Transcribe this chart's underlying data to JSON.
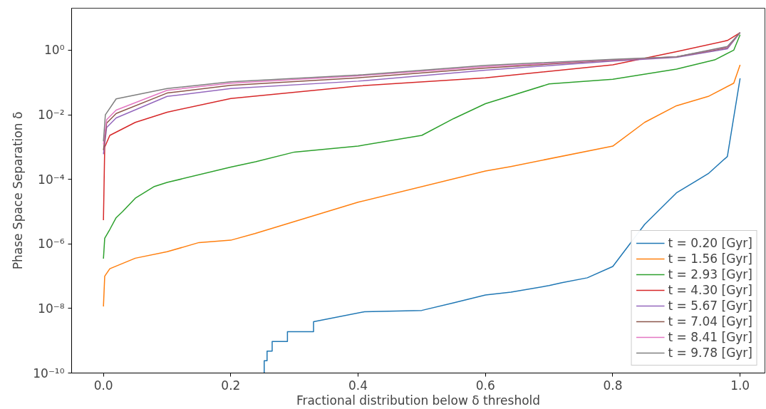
{
  "chart_data": {
    "type": "line",
    "xlabel": "Fractional distribution below δ threshold",
    "ylabel": "Phase Space Separation δ",
    "log": "y",
    "xlim": [
      -0.05,
      1.039
    ],
    "ylim": [
      1e-10,
      20
    ],
    "xticks": [
      {
        "value": 0,
        "label": "0.0"
      },
      {
        "value": 0.2,
        "label": "0.2"
      },
      {
        "value": 0.4,
        "label": "0.4"
      },
      {
        "value": 0.6,
        "label": "0.6"
      },
      {
        "value": 0.8,
        "label": "0.8"
      },
      {
        "value": 1,
        "label": "1.0"
      }
    ],
    "yticks": [
      {
        "value": 1e-10,
        "label": "10⁻¹⁰"
      },
      {
        "value": 1e-08,
        "label": "10⁻⁸"
      },
      {
        "value": 1e-06,
        "label": "10⁻⁶"
      },
      {
        "value": 0.0001,
        "label": "10⁻⁴"
      },
      {
        "value": 0.01,
        "label": "10⁻²"
      },
      {
        "value": 1,
        "label": "10⁰"
      }
    ],
    "grid": false,
    "legend": "bottom right",
    "line_style": "solid",
    "marker": "none",
    "series": [
      {
        "name": "t = 0.20 [Gyr]",
        "color": "#1f77b4",
        "x": [
          0.2525,
          0.2525,
          0.257,
          0.257,
          0.265,
          0.265,
          0.289,
          0.289,
          0.33,
          0.33,
          0.41,
          0.5,
          0.55,
          0.6,
          0.64,
          0.7,
          0.72,
          0.76,
          0.8,
          0.85,
          0.9,
          0.95,
          0.98,
          0.99,
          1.0
        ],
        "values": [
          1e-10,
          2.4e-10,
          2.4e-10,
          4.8e-10,
          4.8e-10,
          9.5e-10,
          9.5e-10,
          1.9e-09,
          1.9e-09,
          3.9e-09,
          7.9e-09,
          8.7e-09,
          1.5e-08,
          2.6e-08,
          3.2e-08,
          5.1e-08,
          6.3e-08,
          8.9e-08,
          2e-07,
          4e-06,
          3.8e-05,
          0.00015,
          0.00051,
          0.0083,
          0.135
        ]
      },
      {
        "name": "t = 1.56 [Gyr]",
        "color": "#ff7f0e",
        "x": [
          0,
          0.002,
          0.01,
          0.05,
          0.1,
          0.15,
          0.2,
          0.238,
          0.4,
          0.6,
          0.64,
          0.8,
          0.85,
          0.9,
          0.95,
          0.99,
          1.0
        ],
        "values": [
          1.15e-08,
          1e-07,
          1.7e-07,
          3.6e-07,
          5.7e-07,
          1.1e-06,
          1.3e-06,
          2.1e-06,
          1.96e-05,
          0.00018,
          0.00025,
          0.00107,
          0.0058,
          0.019,
          0.037,
          0.095,
          0.35
        ]
      },
      {
        "name": "t = 2.93 [Gyr]",
        "color": "#2ca02c",
        "x": [
          0,
          0.002,
          0.01,
          0.02,
          0.03,
          0.05,
          0.08,
          0.1,
          0.2,
          0.239,
          0.3,
          0.4,
          0.5,
          0.55,
          0.6,
          0.7,
          0.8,
          0.9,
          0.96,
          0.99,
          1.0
        ],
        "values": [
          3.5e-07,
          1.5e-06,
          2.8e-06,
          6.5e-06,
          1e-05,
          2.6e-05,
          6e-05,
          8e-05,
          0.00024,
          0.00035,
          0.0007,
          0.00107,
          0.0023,
          0.0076,
          0.022,
          0.09,
          0.125,
          0.26,
          0.5,
          1.0,
          3.0
        ]
      },
      {
        "name": "t = 4.30 [Gyr]",
        "color": "#d62728",
        "x": [
          0,
          0.002,
          0.01,
          0.05,
          0.1,
          0.2,
          0.4,
          0.6,
          0.8,
          0.9,
          0.98,
          1.0
        ],
        "values": [
          5.4e-06,
          0.001,
          0.0023,
          0.0058,
          0.012,
          0.032,
          0.078,
          0.14,
          0.35,
          0.9,
          2.0,
          3.5
        ]
      },
      {
        "name": "t = 5.67 [Gyr]",
        "color": "#9467bd",
        "x": [
          0,
          0.005,
          0.02,
          0.1,
          0.2,
          0.4,
          0.6,
          0.8,
          0.9,
          0.98,
          1.0
        ],
        "values": [
          0.0006,
          0.004,
          0.008,
          0.037,
          0.065,
          0.11,
          0.24,
          0.46,
          0.6,
          1.1,
          3.5
        ]
      },
      {
        "name": "t = 7.04 [Gyr]",
        "color": "#8c564b",
        "x": [
          0,
          0.005,
          0.02,
          0.1,
          0.2,
          0.4,
          0.6,
          0.8,
          0.9,
          0.98,
          1.0
        ],
        "values": [
          0.0008,
          0.0055,
          0.011,
          0.047,
          0.082,
          0.14,
          0.28,
          0.49,
          0.62,
          1.2,
          3.5
        ]
      },
      {
        "name": "t = 8.41 [Gyr]",
        "color": "#e377c2",
        "x": [
          0,
          0.005,
          0.02,
          0.1,
          0.2,
          0.4,
          0.6,
          0.8,
          0.9,
          0.98,
          1.0
        ],
        "values": [
          0.0012,
          0.007,
          0.014,
          0.057,
          0.095,
          0.16,
          0.31,
          0.5,
          0.62,
          1.25,
          3.5
        ]
      },
      {
        "name": "t = 9.78 [Gyr]",
        "color": "#7f7f7f",
        "x": [
          0,
          0.003,
          0.02,
          0.1,
          0.2,
          0.4,
          0.6,
          0.8,
          0.9,
          0.98,
          1.0
        ],
        "values": [
          0.0015,
          0.01,
          0.031,
          0.065,
          0.105,
          0.17,
          0.34,
          0.52,
          0.62,
          1.3,
          3.5
        ]
      }
    ]
  }
}
